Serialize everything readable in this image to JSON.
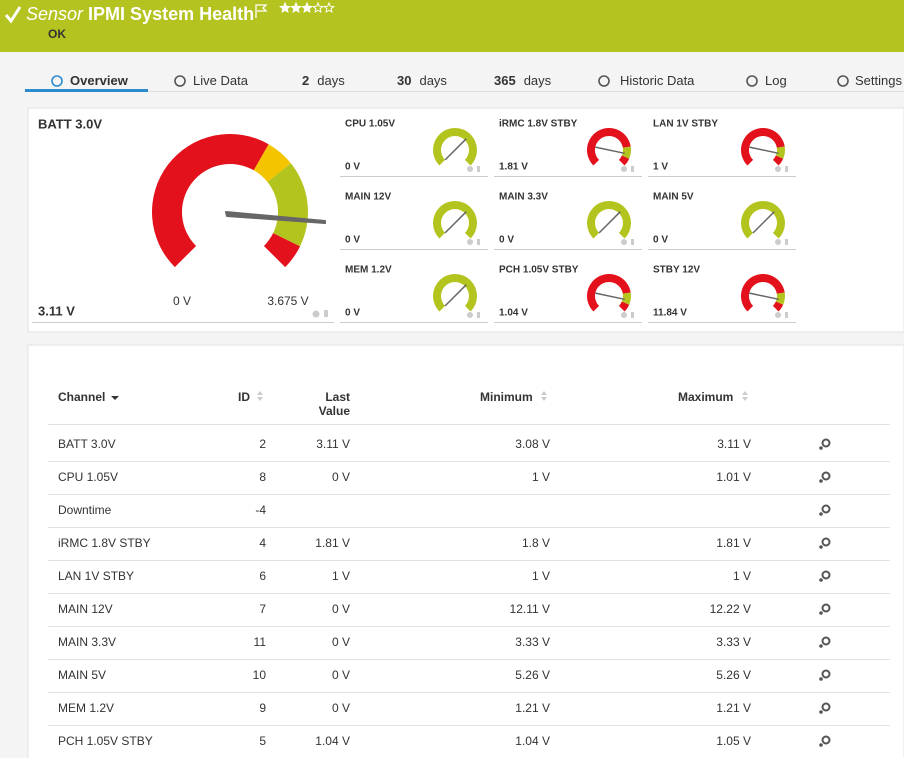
{
  "header": {
    "prefix": "Sensor",
    "title": "IPMI System Health",
    "status": "OK"
  },
  "tabs": [
    {
      "label": "Overview"
    },
    {
      "label": "Live Data"
    },
    {
      "number": "2",
      "label": "days"
    },
    {
      "number": "30",
      "label": "days"
    },
    {
      "number": "365",
      "label": "days"
    },
    {
      "label": "Historic Data"
    },
    {
      "label": "Log"
    },
    {
      "label": "Settings"
    }
  ],
  "main_gauge": {
    "name": "BATT 3.0V",
    "value": "3.11 V",
    "min": "0 V",
    "max": "3.675 V"
  },
  "gauges": [
    {
      "name": "CPU 1.05V",
      "value": "0 V"
    },
    {
      "name": "iRMC 1.8V STBY",
      "value": "1.81 V"
    },
    {
      "name": "LAN 1V STBY",
      "value": "1 V"
    },
    {
      "name": "MAIN 12V",
      "value": "0 V"
    },
    {
      "name": "MAIN 3.3V",
      "value": "0 V"
    },
    {
      "name": "MAIN 5V",
      "value": "0 V"
    },
    {
      "name": "MEM 1.2V",
      "value": "0 V"
    },
    {
      "name": "PCH 1.05V STBY",
      "value": "1.04 V"
    },
    {
      "name": "STBY 12V",
      "value": "11.84 V"
    }
  ],
  "table": {
    "columns": [
      "Channel",
      "ID",
      "Last Value",
      "Minimum",
      "Maximum"
    ],
    "rows": [
      [
        "BATT 3.0V",
        2,
        "3.11 V",
        "3.08 V",
        "3.11 V"
      ],
      [
        "CPU 1.05V",
        8,
        "0 V",
        "1 V",
        "1.01 V"
      ],
      [
        "Downtime",
        -4,
        null,
        null,
        null
      ],
      [
        "iRMC 1.8V STBY",
        4,
        "1.81 V",
        "1.8 V",
        "1.81 V"
      ],
      [
        "LAN 1V STBY",
        6,
        "1 V",
        "1 V",
        "1 V"
      ],
      [
        "MAIN 12V",
        7,
        "0 V",
        "12.11 V",
        "12.22 V"
      ],
      [
        "MAIN 3.3V",
        11,
        "0 V",
        "3.33 V",
        "3.33 V"
      ],
      [
        "MAIN 5V",
        10,
        "0 V",
        "5.26 V",
        "5.26 V"
      ],
      [
        "MEM 1.2V",
        9,
        "0 V",
        "1.21 V",
        "1.21 V"
      ],
      [
        "PCH 1.05V STBY",
        5,
        "1.04 V",
        "1.04 V",
        "1.05 V"
      ]
    ]
  }
}
